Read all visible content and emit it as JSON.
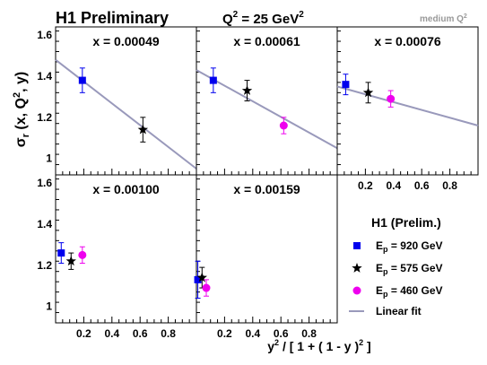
{
  "header": {
    "title": "H1 Preliminary",
    "q2_prefix": "Q",
    "q2_sup": "2",
    "q2_suffix": " = 25 GeV",
    "q2_unit_sup": "2",
    "corner_label": "medium Q",
    "corner_sup": "2"
  },
  "axes": {
    "ylabel_main": "σ",
    "ylabel_sub": "r",
    "ylabel_rest1": " (x, Q",
    "ylabel_sup": "2",
    "ylabel_rest2": ", y)",
    "xlabel_a": "y",
    "xlabel_sup": "2",
    "xlabel_b": " / [ 1 + ( 1 - y )",
    "xlabel_sup2": "2",
    "xlabel_c": " ]",
    "y_ticks": [
      "1.6",
      "1.4",
      "1.2",
      "1"
    ],
    "x_ticks": [
      "0.2",
      "0.4",
      "0.6",
      "0.8"
    ]
  },
  "legend": {
    "title": "H1 (Prelim.)",
    "entries": [
      {
        "pre": "E",
        "sub": "p",
        "post": " = 920 GeV",
        "marker": "square",
        "color": "#0000ee"
      },
      {
        "pre": "E",
        "sub": "p",
        "post": " = 575 GeV",
        "marker": "star",
        "color": "#000000"
      },
      {
        "pre": "E",
        "sub": "p",
        "post": " = 460 GeV",
        "marker": "circle",
        "color": "#ee00ee"
      },
      {
        "pre": "Linear fit",
        "sub": "",
        "post": "",
        "marker": "line",
        "color": "#9999bb"
      }
    ]
  },
  "chart_data": [
    {
      "type": "scatter",
      "x_label_text": "x =  0.00049",
      "xlim": [
        0,
        1
      ],
      "ylim": [
        0.92,
        1.64
      ],
      "fit": {
        "x": [
          0,
          1
        ],
        "y": [
          1.48,
          0.95
        ]
      },
      "series": [
        {
          "name": "E_p = 920 GeV",
          "x": [
            0.19
          ],
          "y": [
            1.38
          ],
          "err": [
            0.06
          ]
        },
        {
          "name": "E_p = 575 GeV",
          "x": [
            0.62
          ],
          "y": [
            1.14
          ],
          "err": [
            0.06
          ]
        }
      ]
    },
    {
      "type": "scatter",
      "x_label_text": "x =  0.00061",
      "xlim": [
        0,
        1
      ],
      "ylim": [
        0.92,
        1.64
      ],
      "fit": {
        "x": [
          0,
          1
        ],
        "y": [
          1.43,
          1.05
        ]
      },
      "series": [
        {
          "name": "E_p = 920 GeV",
          "x": [
            0.12
          ],
          "y": [
            1.38
          ],
          "err": [
            0.06
          ]
        },
        {
          "name": "E_p = 575 GeV",
          "x": [
            0.36
          ],
          "y": [
            1.33
          ],
          "err": [
            0.05
          ]
        },
        {
          "name": "E_p = 460 GeV",
          "x": [
            0.62
          ],
          "y": [
            1.16
          ],
          "err": [
            0.04
          ]
        }
      ]
    },
    {
      "type": "scatter",
      "x_label_text": "x =  0.00076",
      "xlim": [
        0,
        1
      ],
      "ylim": [
        0.92,
        1.64
      ],
      "fit": {
        "x": [
          0,
          1
        ],
        "y": [
          1.35,
          1.16
        ]
      },
      "series": [
        {
          "name": "E_p = 920 GeV",
          "x": [
            0.06
          ],
          "y": [
            1.36
          ],
          "err": [
            0.05
          ]
        },
        {
          "name": "E_p = 575 GeV",
          "x": [
            0.22
          ],
          "y": [
            1.32
          ],
          "err": [
            0.05
          ]
        },
        {
          "name": "E_p = 460 GeV",
          "x": [
            0.38
          ],
          "y": [
            1.29
          ],
          "err": [
            0.04
          ]
        }
      ]
    },
    {
      "type": "scatter",
      "x_label_text": "x =  0.00100",
      "xlim": [
        0,
        1
      ],
      "ylim": [
        0.92,
        1.64
      ],
      "fit": null,
      "series": [
        {
          "name": "E_p = 920 GeV",
          "x": [
            0.04
          ],
          "y": [
            1.26
          ],
          "err": [
            0.05
          ]
        },
        {
          "name": "E_p = 575 GeV",
          "x": [
            0.11
          ],
          "y": [
            1.22
          ],
          "err": [
            0.04
          ]
        },
        {
          "name": "E_p = 460 GeV",
          "x": [
            0.19
          ],
          "y": [
            1.25
          ],
          "err": [
            0.04
          ]
        }
      ]
    },
    {
      "type": "scatter",
      "x_label_text": "x =  0.00159",
      "xlim": [
        0,
        1
      ],
      "ylim": [
        0.92,
        1.64
      ],
      "fit": null,
      "series": [
        {
          "name": "E_p = 920 GeV",
          "x": [
            0.01
          ],
          "y": [
            1.13
          ],
          "err": [
            0.09
          ]
        },
        {
          "name": "E_p = 575 GeV",
          "x": [
            0.04
          ],
          "y": [
            1.14
          ],
          "err": [
            0.05
          ]
        },
        {
          "name": "E_p = 460 GeV",
          "x": [
            0.07
          ],
          "y": [
            1.09
          ],
          "err": [
            0.04
          ]
        }
      ]
    }
  ]
}
